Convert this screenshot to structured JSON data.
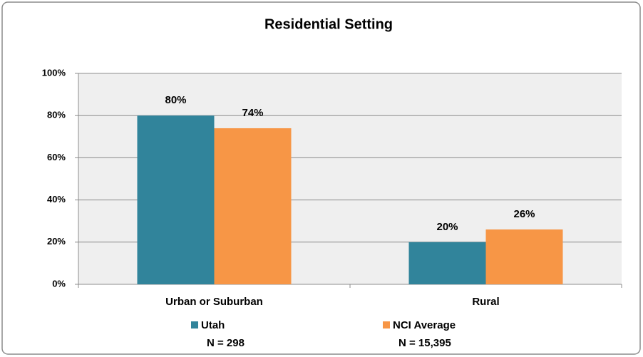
{
  "chart_data": {
    "type": "bar",
    "title": "Residential Setting",
    "categories": [
      "Urban or Suburban",
      "Rural"
    ],
    "series": [
      {
        "name": "Utah",
        "sample": "N = 298",
        "color": "#31849b",
        "values": [
          80,
          20
        ],
        "value_labels": [
          "80%",
          "20%"
        ]
      },
      {
        "name": "NCI Average",
        "sample": "N = 15,395",
        "color": "#f79646",
        "values": [
          74,
          26
        ],
        "value_labels": [
          "74%",
          "26%"
        ]
      }
    ],
    "ylim": [
      0,
      100
    ],
    "yticks": [
      {
        "value": 0,
        "label": "0%"
      },
      {
        "value": 20,
        "label": "20%"
      },
      {
        "value": 40,
        "label": "40%"
      },
      {
        "value": 60,
        "label": "60%"
      },
      {
        "value": 80,
        "label": "80%"
      },
      {
        "value": 100,
        "label": "100%"
      }
    ],
    "grid": true,
    "legend": "bottom"
  }
}
